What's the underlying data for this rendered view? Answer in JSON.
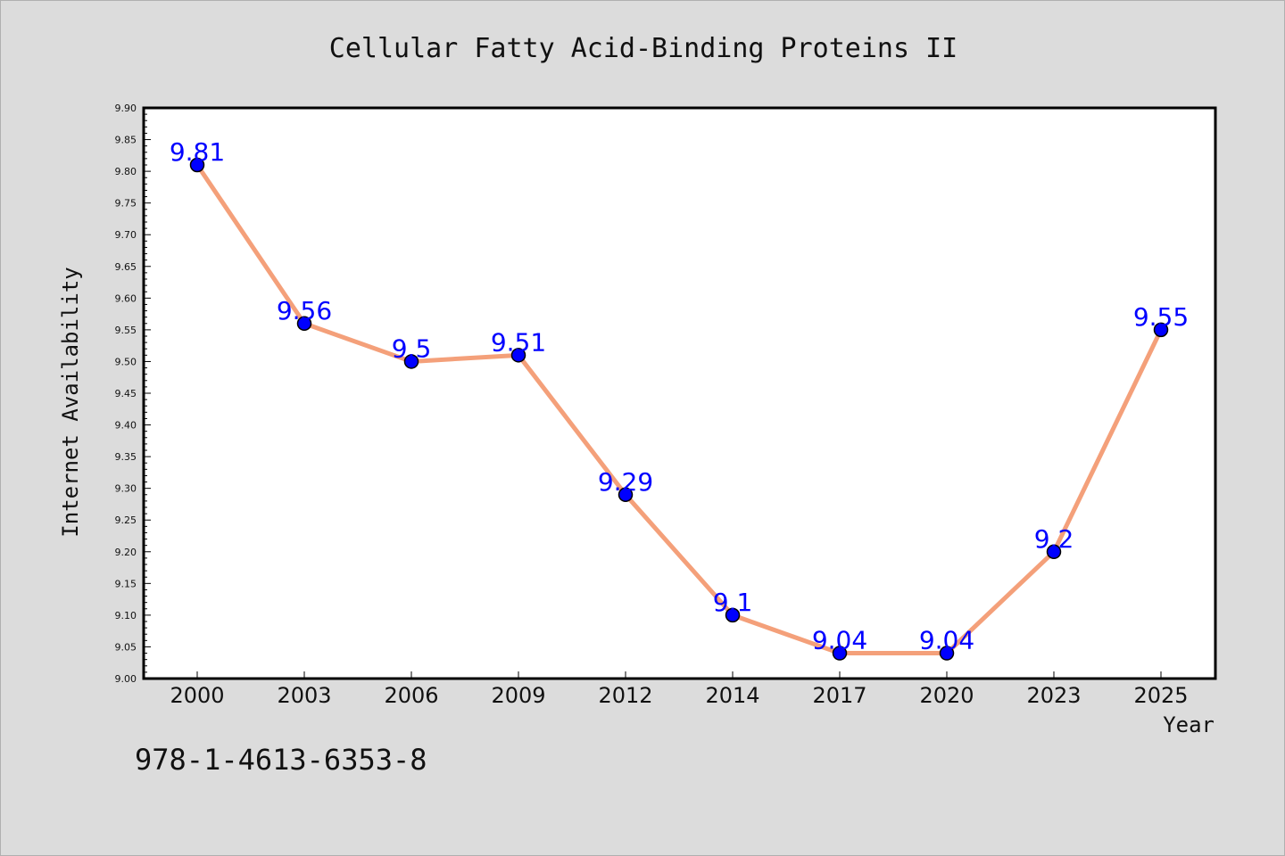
{
  "chart_data": {
    "type": "line",
    "title": "Cellular Fatty Acid-Binding Proteins II",
    "xlabel": "Year",
    "ylabel": "Internet Availability",
    "categories": [
      "2000",
      "2003",
      "2006",
      "2009",
      "2012",
      "2014",
      "2017",
      "2020",
      "2023",
      "2025"
    ],
    "series": [
      {
        "values": [
          9.81,
          9.56,
          9.5,
          9.51,
          9.29,
          9.1,
          9.04,
          9.04,
          9.2,
          9.55
        ],
        "labels": [
          "9.81",
          "9.56",
          "9.5",
          "9.51",
          "9.29",
          "9.1",
          "9.04",
          "9.04",
          "9.2",
          "9.55"
        ]
      }
    ],
    "ylim": [
      9.0,
      9.9
    ],
    "ytick_step": 0.05,
    "yticks": [
      "9.00",
      "9.05",
      "9.10",
      "9.15",
      "9.20",
      "9.25",
      "9.30",
      "9.35",
      "9.40",
      "9.45",
      "9.50",
      "9.55",
      "9.60",
      "9.65",
      "9.70",
      "9.75",
      "9.80",
      "9.85",
      "9.90"
    ],
    "grid": false,
    "legend": "none",
    "colors": {
      "line": "#f4a07a",
      "marker": "#0000ff",
      "data_label": "#0000ff",
      "plot_background": "#ffffff",
      "figure_background": "#dcdcdc"
    }
  },
  "footnote": "978-1-4613-6353-8"
}
